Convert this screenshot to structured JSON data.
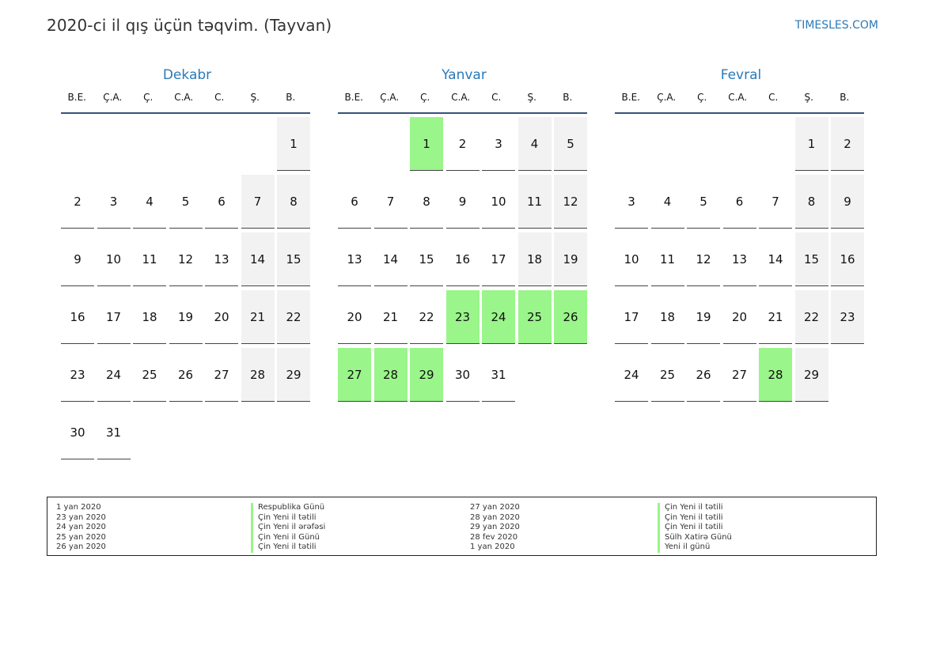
{
  "header": {
    "title": "2020-ci il qış üçün təqvim. (Tayvan)",
    "brand": "TIMESLES.COM"
  },
  "weekdays": [
    "B.E.",
    "Ç.A.",
    "Ç.",
    "C.A.",
    "C.",
    "Ş.",
    "B."
  ],
  "colors": {
    "holiday": "#9af58a",
    "weekend": "#f2f2f2",
    "accent": "#2a7ab8"
  },
  "months": [
    {
      "name": "Dekabr",
      "start_weekday": 6,
      "days": 31,
      "holidays": []
    },
    {
      "name": "Yanvar",
      "start_weekday": 2,
      "days": 31,
      "holidays": [
        1,
        23,
        24,
        25,
        26,
        27,
        28,
        29
      ]
    },
    {
      "name": "Fevral",
      "start_weekday": 5,
      "days": 29,
      "holidays": [
        28
      ]
    }
  ],
  "legend": [
    {
      "dates": [
        "1 yan 2020",
        "23 yan 2020",
        "24 yan 2020",
        "25 yan 2020",
        "26 yan 2020"
      ],
      "names": [
        "Respublika Günü",
        "Çin Yeni il tətili",
        "Çin Yeni il ərəfəsi",
        "Çin Yeni il Günü",
        "Çin Yeni il tətili"
      ]
    },
    {
      "dates": [
        "27 yan 2020",
        "28 yan 2020",
        "29 yan 2020",
        "28 fev 2020",
        "1 yan 2020"
      ],
      "names": [
        "Çin Yeni il tətili",
        "Çin Yeni il tətili",
        "Çin Yeni il tətili",
        "Sülh Xatirə Günü",
        "Yeni il günü"
      ]
    }
  ]
}
